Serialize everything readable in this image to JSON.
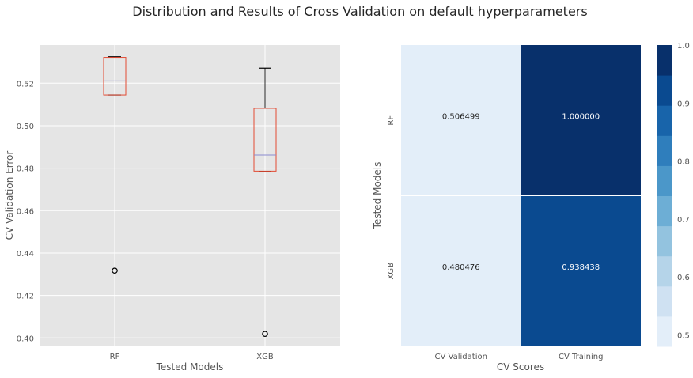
{
  "figure": {
    "suptitle": "Distribution and Results of Cross Validation on default hyperparameters"
  },
  "chart_data": [
    {
      "type": "box",
      "xlabel": "Tested Models",
      "ylabel": "CV Validation Error",
      "ylim": [
        0.396,
        0.538
      ],
      "yticks": [
        "0.40",
        "0.42",
        "0.44",
        "0.46",
        "0.48",
        "0.50",
        "0.52"
      ],
      "grid": true,
      "categories": [
        "RF",
        "XGB"
      ],
      "boxes": [
        {
          "name": "RF",
          "whisker_low": 0.5145,
          "q1": 0.5145,
          "median": 0.5211,
          "q3": 0.5322,
          "whisker_high": 0.5325,
          "outliers": [
            0.4317
          ]
        },
        {
          "name": "XGB",
          "whisker_low": 0.4784,
          "q1": 0.4786,
          "median": 0.4862,
          "q3": 0.5082,
          "whisker_high": 0.5271,
          "outliers": [
            0.4019
          ]
        }
      ],
      "colors": {
        "box": "#e24a33",
        "median": "#8a8ad0",
        "background": "#e5e5e5"
      }
    },
    {
      "type": "heatmap",
      "xlabel": "CV Scores",
      "ylabel": "Tested Models",
      "x_categories": [
        "CV Validation",
        "CV Training"
      ],
      "y_categories": [
        "RF",
        "XGB"
      ],
      "values": [
        [
          0.506499,
          1.0
        ],
        [
          0.480476,
          0.938438
        ]
      ],
      "value_labels": [
        [
          "0.506499",
          "1.000000"
        ],
        [
          "0.480476",
          "0.938438"
        ]
      ],
      "colormap": "Blues",
      "colorbar": {
        "range": [
          0.48,
          1.0
        ],
        "ticks": [
          "0.5",
          "0.6",
          "0.7",
          "0.8",
          "0.9",
          "1.0"
        ],
        "colors": [
          "#e3eef9",
          "#cfe1f2",
          "#b5d4e9",
          "#93c3df",
          "#6daed5",
          "#4b97c9",
          "#2f7ebc",
          "#1864aa",
          "#0a4a90",
          "#08306b"
        ]
      }
    }
  ]
}
